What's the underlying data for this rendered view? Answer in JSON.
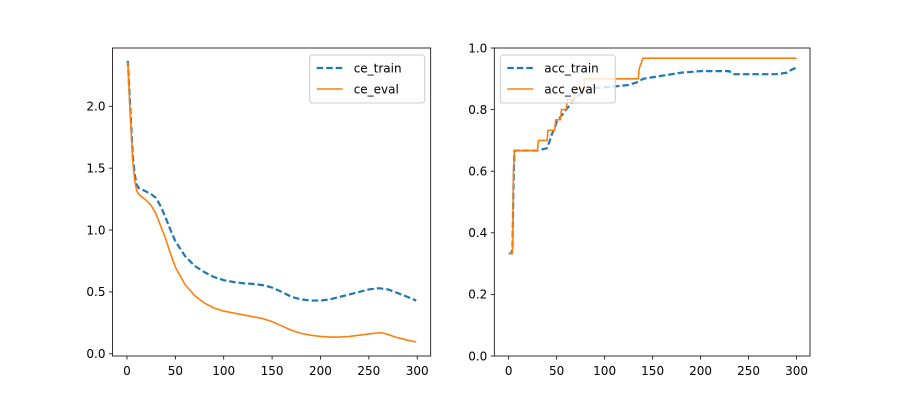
{
  "colors": {
    "train": "#1f77b4",
    "eval": "#ff7f0e"
  },
  "chart_data": [
    {
      "type": "line",
      "xlim": [
        -14.95,
        313.95
      ],
      "ylim": [
        -0.0179,
        2.471
      ],
      "xticks": [
        0,
        50,
        100,
        150,
        200,
        250,
        300
      ],
      "yticks": [
        0.0,
        0.5,
        1.0,
        1.5,
        2.0
      ],
      "ytick_labels": [
        "0.0",
        "0.5",
        "1.0",
        "1.5",
        "2.0"
      ],
      "legend_position": "upper right",
      "series": [
        {
          "name": "ce_train",
          "style": "dashed",
          "color": "#1f77b4",
          "x": [
            0,
            1,
            2,
            4,
            6,
            8,
            10,
            12,
            15,
            20,
            25,
            30,
            35,
            40,
            45,
            50,
            60,
            70,
            80,
            90,
            100,
            110,
            120,
            130,
            140,
            150,
            160,
            170,
            180,
            190,
            200,
            210,
            220,
            230,
            240,
            250,
            260,
            265,
            270,
            280,
            290,
            299
          ],
          "y": [
            2.35,
            2.36,
            2.2,
            1.9,
            1.6,
            1.45,
            1.37,
            1.34,
            1.33,
            1.31,
            1.29,
            1.26,
            1.19,
            1.1,
            1.0,
            0.91,
            0.79,
            0.71,
            0.66,
            0.62,
            0.595,
            0.58,
            0.57,
            0.565,
            0.555,
            0.535,
            0.5,
            0.46,
            0.44,
            0.43,
            0.43,
            0.44,
            0.46,
            0.48,
            0.5,
            0.52,
            0.53,
            0.525,
            0.52,
            0.49,
            0.46,
            0.43
          ]
        },
        {
          "name": "ce_eval",
          "style": "solid",
          "color": "#ff7f0e",
          "x": [
            0,
            1,
            2,
            4,
            6,
            8,
            10,
            12,
            15,
            20,
            25,
            30,
            35,
            40,
            45,
            50,
            60,
            70,
            80,
            90,
            100,
            110,
            120,
            130,
            140,
            150,
            160,
            170,
            180,
            190,
            200,
            210,
            220,
            230,
            240,
            250,
            260,
            265,
            270,
            280,
            290,
            299
          ],
          "y": [
            2.33,
            2.35,
            2.15,
            1.85,
            1.55,
            1.4,
            1.32,
            1.29,
            1.27,
            1.24,
            1.2,
            1.13,
            1.03,
            0.93,
            0.81,
            0.7,
            0.56,
            0.47,
            0.41,
            0.37,
            0.345,
            0.33,
            0.315,
            0.3,
            0.285,
            0.26,
            0.225,
            0.19,
            0.165,
            0.15,
            0.14,
            0.135,
            0.135,
            0.14,
            0.15,
            0.16,
            0.17,
            0.168,
            0.155,
            0.13,
            0.11,
            0.095
          ]
        }
      ]
    },
    {
      "type": "line",
      "xlim": [
        -14.95,
        313.95
      ],
      "ylim": [
        0.0,
        1.0
      ],
      "xticks": [
        0,
        50,
        100,
        150,
        200,
        250,
        300
      ],
      "yticks": [
        0.0,
        0.2,
        0.4,
        0.6,
        0.8,
        1.0
      ],
      "ytick_labels": [
        "0.0",
        "0.2",
        "0.4",
        "0.6",
        "0.8",
        "1.0"
      ],
      "legend_position": "upper left",
      "series": [
        {
          "name": "acc_train",
          "style": "dashed",
          "color": "#1f77b4",
          "x": [
            0,
            3,
            4,
            5,
            6,
            30,
            40,
            43,
            45,
            48,
            50,
            55,
            60,
            65,
            70,
            75,
            80,
            90,
            110,
            125,
            130,
            135,
            140,
            150,
            160,
            170,
            180,
            200,
            220,
            230,
            232,
            235,
            260,
            280,
            290,
            295,
            299
          ],
          "y": [
            0.333,
            0.333,
            0.35,
            0.55,
            0.667,
            0.667,
            0.675,
            0.7,
            0.72,
            0.74,
            0.76,
            0.78,
            0.8,
            0.82,
            0.84,
            0.85,
            0.86,
            0.87,
            0.875,
            0.88,
            0.885,
            0.89,
            0.9,
            0.905,
            0.91,
            0.915,
            0.92,
            0.925,
            0.925,
            0.925,
            0.918,
            0.915,
            0.915,
            0.915,
            0.92,
            0.93,
            0.935
          ]
        },
        {
          "name": "acc_eval",
          "style": "solid",
          "color": "#ff7f0e",
          "x": [
            0,
            4,
            5,
            6,
            30,
            31,
            40,
            41,
            48,
            49,
            54,
            55,
            60,
            61,
            68,
            69,
            78,
            79,
            135,
            136,
            140,
            300
          ],
          "y": [
            0.333,
            0.333,
            0.6,
            0.667,
            0.667,
            0.7,
            0.7,
            0.733,
            0.733,
            0.767,
            0.767,
            0.8,
            0.8,
            0.833,
            0.833,
            0.867,
            0.867,
            0.9,
            0.9,
            0.933,
            0.967,
            0.967
          ]
        }
      ]
    }
  ]
}
